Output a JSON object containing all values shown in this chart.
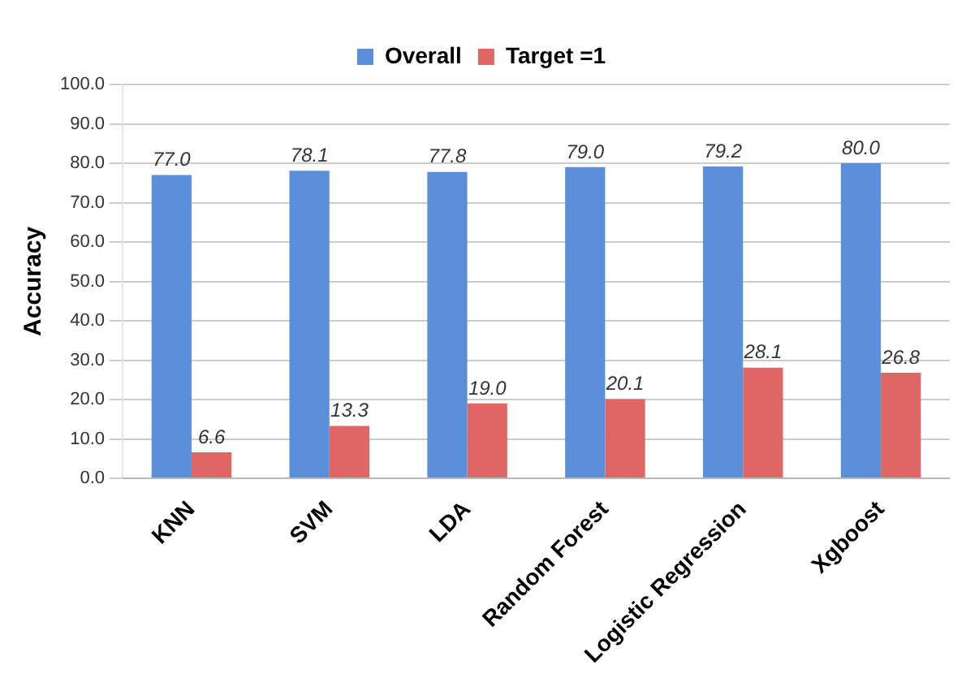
{
  "chart_data": {
    "type": "bar",
    "ylabel": "Accuracy",
    "categories": [
      "KNN",
      "SVM",
      "LDA",
      "Random Forest",
      "Logistic Regression",
      "Xgboost"
    ],
    "series": [
      {
        "name": "Overall",
        "color": "#5b8fd9",
        "values": [
          77.0,
          78.1,
          77.8,
          79.0,
          79.2,
          80.0
        ],
        "value_labels": [
          "77.0",
          "78.1",
          "77.8",
          "79.0",
          "79.2",
          "80.0"
        ]
      },
      {
        "name": "Target =1",
        "color": "#e06666",
        "values": [
          6.6,
          13.3,
          19.0,
          20.1,
          28.1,
          26.8
        ],
        "value_labels": [
          "6.6",
          "13.3",
          "19.0",
          "20.1",
          "28.1",
          "26.8"
        ]
      }
    ],
    "ylim": [
      0,
      100
    ],
    "yticks": [
      {
        "value": 0,
        "label": "0.0"
      },
      {
        "value": 10,
        "label": "10.0"
      },
      {
        "value": 20,
        "label": "20.0"
      },
      {
        "value": 30,
        "label": "30.0"
      },
      {
        "value": 40,
        "label": "40.0"
      },
      {
        "value": 50,
        "label": "50.0"
      },
      {
        "value": 60,
        "label": "60.0"
      },
      {
        "value": 70,
        "label": "70.0"
      },
      {
        "value": 80,
        "label": "80.0"
      },
      {
        "value": 90,
        "label": "90.0"
      },
      {
        "value": 100,
        "label": "100.0"
      }
    ],
    "grid": "y",
    "legend": "top"
  }
}
